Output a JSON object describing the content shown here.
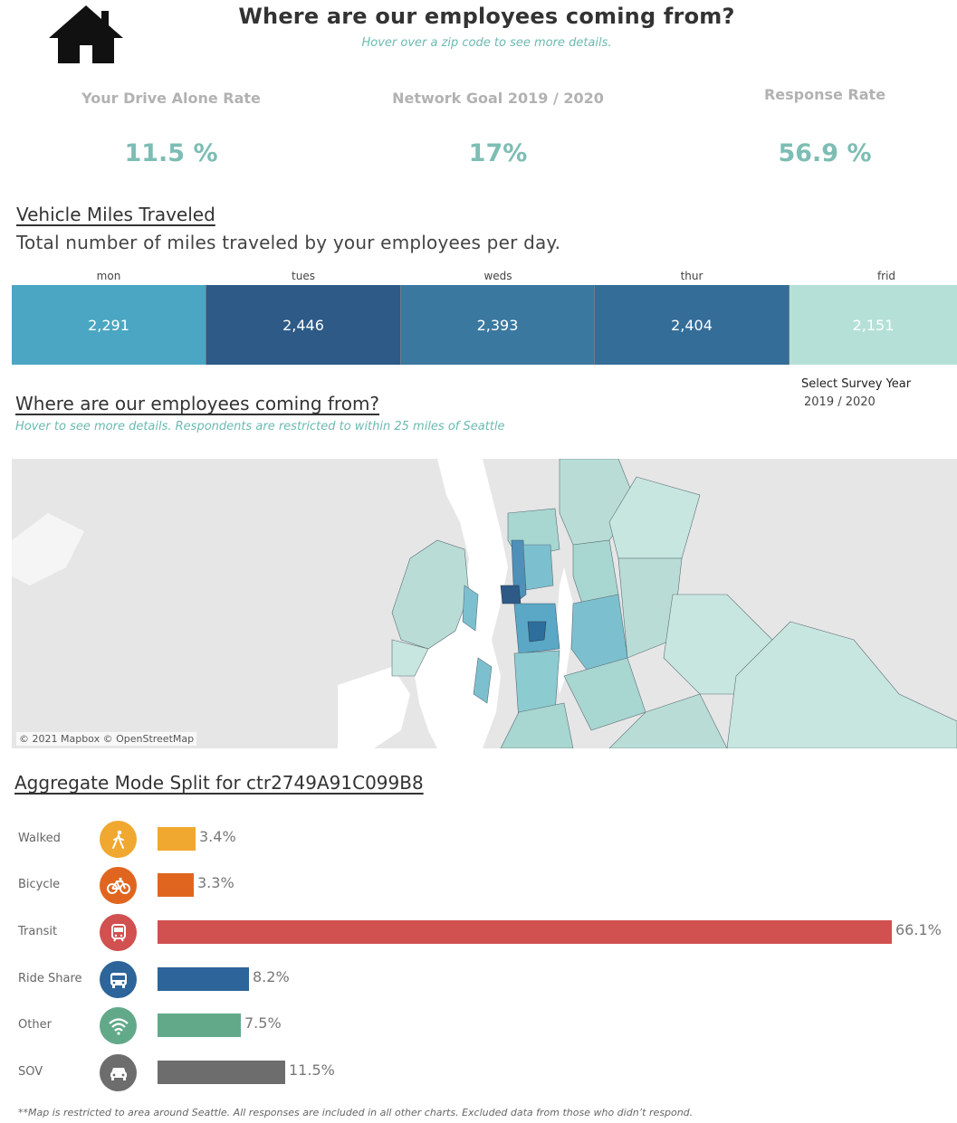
{
  "header": {
    "title": "Where are our employees coming from?",
    "subtitle": "Hover over a zip code to see more details."
  },
  "kpis": [
    {
      "label": "Your Drive Alone Rate",
      "value": "11.5 %"
    },
    {
      "label": "Network Goal 2019 / 2020",
      "value": "17%"
    },
    {
      "label": "Response Rate",
      "value": "56.9 %"
    }
  ],
  "vmt": {
    "title": "Vehicle Miles Traveled",
    "description": "Total number of miles traveled by your employees per day.",
    "days": [
      {
        "day": "mon",
        "value": "2,291",
        "color": "#4aa6c2"
      },
      {
        "day": "tues",
        "value": "2,446",
        "color": "#2e5a87"
      },
      {
        "day": "weds",
        "value": "2,393",
        "color": "#3b78a0"
      },
      {
        "day": "thur",
        "value": "2,404",
        "color": "#356d99"
      },
      {
        "day": "frid",
        "value": "2,151",
        "color": "#b5e0d8"
      }
    ]
  },
  "survey_year": {
    "label": "Select Survey Year",
    "value": "2019 / 2020"
  },
  "map_section": {
    "title": "Where are our employees coming from?",
    "note": "Hover to see more details. Respondents are restricted to within 25 miles of Seattle",
    "credit": "© 2021 Mapbox © OpenStreetMap"
  },
  "mode_split": {
    "title": "Aggregate Mode Split for ctr2749A91C099B8",
    "modes": [
      {
        "label": "Walked",
        "value": "3.4%",
        "pct": 3.4,
        "color": "#f0a830",
        "icon": "walking-icon"
      },
      {
        "label": "Bicycle",
        "value": "3.3%",
        "pct": 3.3,
        "color": "#e0661f",
        "icon": "bicycle-icon"
      },
      {
        "label": "Transit",
        "value": "66.1%",
        "pct": 66.1,
        "color": "#d15050",
        "icon": "train-icon"
      },
      {
        "label": "Ride Share",
        "value": "8.2%",
        "pct": 8.2,
        "color": "#2d6499",
        "icon": "bus-icon"
      },
      {
        "label": "Other",
        "value": "7.5%",
        "pct": 7.5,
        "color": "#62a98a",
        "icon": "wifi-icon"
      },
      {
        "label": "SOV",
        "value": "11.5%",
        "pct": 11.5,
        "color": "#6d6d6d",
        "icon": "car-icon"
      }
    ]
  },
  "footnote": "**Map is restricted to area around Seattle. All responses are included in all other charts. Excluded data from those who didn’t respond."
}
